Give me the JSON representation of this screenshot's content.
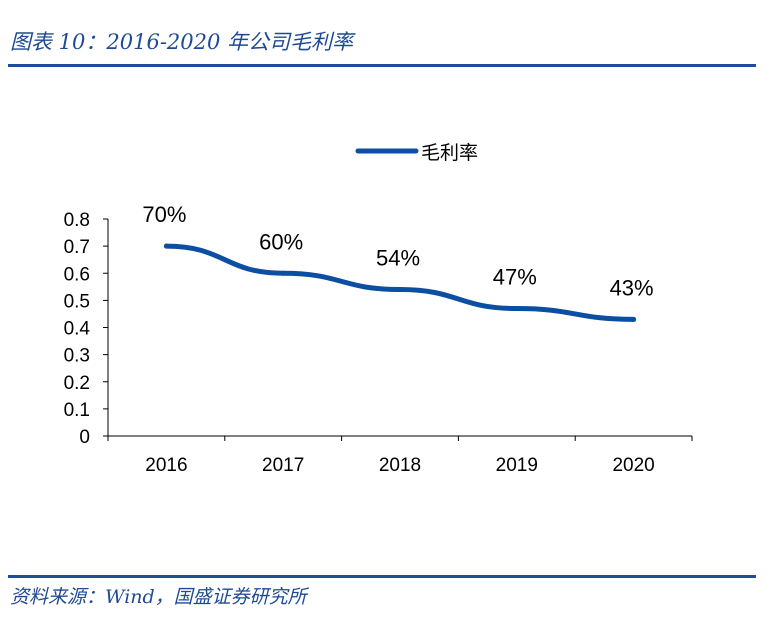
{
  "header": {
    "title": "图表 10：2016-2020 年公司毛利率"
  },
  "footer": {
    "source": "资料来源：Wind，国盛证券研究所"
  },
  "colors": {
    "accent": "#1f4e99",
    "series": "#0b4ea2",
    "text": "#000000"
  },
  "chart_data": {
    "type": "line",
    "title": "",
    "xlabel": "",
    "ylabel": "",
    "categories": [
      "2016",
      "2017",
      "2018",
      "2019",
      "2020"
    ],
    "series": [
      {
        "name": "毛利率",
        "values": [
          0.7,
          0.6,
          0.54,
          0.47,
          0.43
        ],
        "data_labels": [
          "70%",
          "60%",
          "54%",
          "47%",
          "43%"
        ]
      }
    ],
    "y_ticks": [
      "0",
      "0.1",
      "0.2",
      "0.3",
      "0.4",
      "0.5",
      "0.6",
      "0.7",
      "0.8"
    ],
    "ylim": [
      0,
      0.8
    ],
    "grid": false,
    "legend": "top-center"
  }
}
